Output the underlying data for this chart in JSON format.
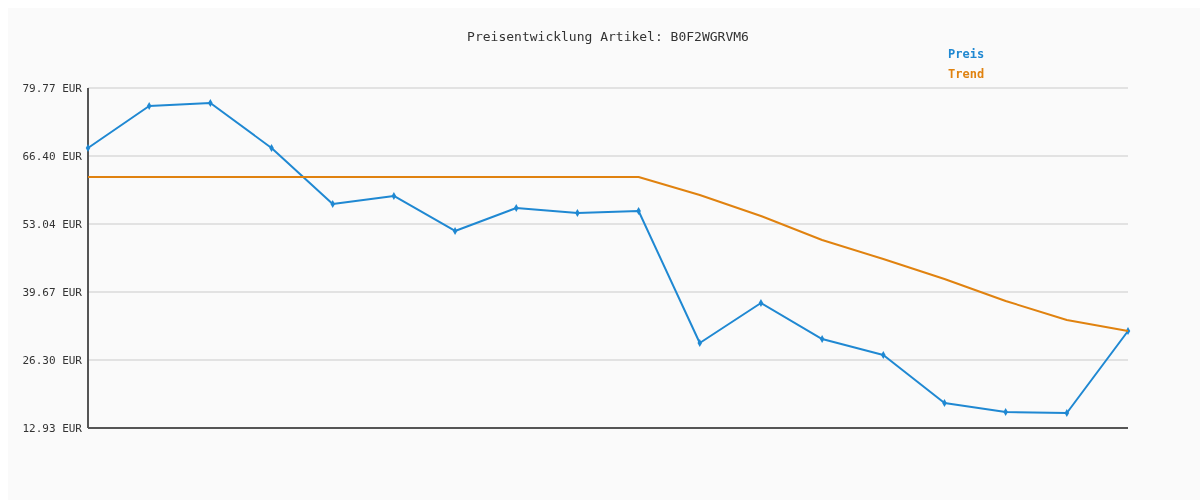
{
  "chart_data": {
    "type": "line",
    "title": "Preisentwicklung Artikel: B0F2WGRVM6",
    "categories": [
      null,
      null,
      null,
      null,
      null,
      null,
      null,
      null,
      null,
      null,
      null,
      null,
      null,
      null,
      null,
      null,
      null,
      null
    ],
    "series": [
      {
        "name": "Preis",
        "color": "#1f88d2",
        "marker": "diamond",
        "values": [
          67.97,
          76.23,
          76.82,
          67.97,
          56.97,
          58.54,
          51.66,
          56.18,
          55.2,
          55.59,
          29.64,
          37.5,
          30.42,
          27.28,
          17.84,
          16.07,
          15.88,
          32.0
        ]
      },
      {
        "name": "Trend",
        "color": "#e0820f",
        "marker": "none",
        "values": [
          62.27,
          62.27,
          62.27,
          62.27,
          62.27,
          62.27,
          62.27,
          62.27,
          62.27,
          62.27,
          58.73,
          54.61,
          49.89,
          46.15,
          42.22,
          37.9,
          34.16,
          32.0
        ]
      }
    ],
    "ylim": [
      12.93,
      79.77
    ],
    "yticks": [
      {
        "value": 12.93,
        "label": "12.93 EUR"
      },
      {
        "value": 26.3,
        "label": "26.30 EUR"
      },
      {
        "value": 39.67,
        "label": "39.67 EUR"
      },
      {
        "value": 53.04,
        "label": "53.04 EUR"
      },
      {
        "value": 66.4,
        "label": "66.40 EUR"
      },
      {
        "value": 79.77,
        "label": "79.77 EUR"
      }
    ],
    "grid": "y",
    "legend": "top right"
  }
}
